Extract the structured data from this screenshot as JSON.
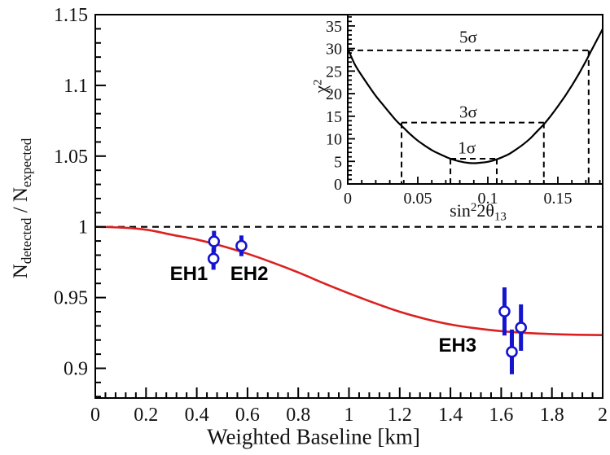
{
  "figure": {
    "background": "#ffffff",
    "colors": {
      "curve": "#dc2020",
      "points": "#1414cf",
      "axis": "#000000",
      "text": "#111111"
    }
  },
  "chart_data": [
    {
      "id": "main",
      "type": "line+scatter",
      "title": "",
      "xlabel": "Weighted Baseline [km]",
      "ylabel": "N_detected / N_expected",
      "ylabel_parts": {
        "base1": "N",
        "sub1": "detected",
        "base2": " / N",
        "sub2": "expected"
      },
      "xlim": [
        0,
        2
      ],
      "ylim": [
        0.879,
        1.15
      ],
      "x_major_ticks": [
        0,
        0.2,
        0.4,
        0.6,
        0.8,
        1,
        1.2,
        1.4,
        1.6,
        1.8,
        2
      ],
      "x_tick_labels": [
        "0",
        "0.2",
        "0.4",
        "0.6",
        "0.8",
        "1",
        "1.2",
        "1.4",
        "1.6",
        "1.8",
        "2"
      ],
      "x_minor_step": 0.04,
      "y_major_ticks": [
        0.9,
        0.95,
        1,
        1.05,
        1.1,
        1.15
      ],
      "y_tick_labels": [
        "0.9",
        "0.95",
        "1",
        "1.05",
        "1.1",
        "1.15"
      ],
      "y_minor_step": 0.01,
      "grid": false,
      "reference_line": {
        "y": 1.0,
        "style": "dashed",
        "color": "#000000"
      },
      "best_fit_curve": {
        "name": "best-fit oscillation survival ratio",
        "color": "#dc2020",
        "x": [
          0,
          0.1,
          0.2,
          0.3,
          0.4,
          0.5,
          0.6,
          0.7,
          0.8,
          0.9,
          1.0,
          1.1,
          1.2,
          1.3,
          1.4,
          1.5,
          1.6,
          1.7,
          1.8,
          1.9,
          2.0
        ],
        "y": [
          1.0,
          0.9995,
          0.998,
          0.9945,
          0.991,
          0.9865,
          0.981,
          0.9747,
          0.9678,
          0.9602,
          0.953,
          0.9462,
          0.94,
          0.935,
          0.931,
          0.9283,
          0.9263,
          0.925,
          0.9242,
          0.9237,
          0.9235
        ]
      },
      "data_points": {
        "marker": "open-circle",
        "color": "#1414cf",
        "points": [
          {
            "site": "EH1",
            "x": 0.468,
            "y": 0.9897,
            "yerr": 0.0075
          },
          {
            "site": "EH1",
            "x": 0.466,
            "y": 0.9775,
            "yerr": 0.0078
          },
          {
            "site": "EH2",
            "x": 0.576,
            "y": 0.9866,
            "yerr": 0.0073
          },
          {
            "site": "EH3",
            "x": 1.613,
            "y": 0.9402,
            "yerr": 0.017
          },
          {
            "site": "EH3",
            "x": 1.678,
            "y": 0.9288,
            "yerr": 0.0164
          },
          {
            "site": "EH3",
            "x": 1.642,
            "y": 0.9116,
            "yerr": 0.0158
          }
        ]
      },
      "annotations": [
        {
          "text": "EH1",
          "x": 0.369,
          "y": 0.9665
        },
        {
          "text": "EH2",
          "x": 0.607,
          "y": 0.9665
        },
        {
          "text": "EH3",
          "x": 1.428,
          "y": 0.916
        }
      ]
    },
    {
      "id": "inset",
      "type": "line",
      "title": "",
      "xlabel": "sin^2 2theta_13",
      "xlabel_parts": {
        "base": "sin",
        "sup": "2",
        "base2": "2θ",
        "sub": "13"
      },
      "ylabel": "chi^2",
      "ylabel_parts": {
        "base": "χ",
        "sup": "2"
      },
      "xlim": [
        0,
        0.182
      ],
      "ylim": [
        0,
        37.5
      ],
      "x_major_ticks": [
        0,
        0.05,
        0.1,
        0.15
      ],
      "x_tick_labels": [
        "0",
        "0.05",
        "0.1",
        "0.15"
      ],
      "x_minor_step": 0.01,
      "y_major_ticks": [
        0,
        5,
        10,
        15,
        20,
        25,
        30,
        35
      ],
      "y_tick_labels": [
        "0",
        "5",
        "10",
        "15",
        "20",
        "25",
        "30",
        "35"
      ],
      "y_minor_step": 1,
      "grid": false,
      "chi2_curve": {
        "name": "chi-square scan vs sin^2 2theta_13",
        "color": "#000000",
        "x": [
          0,
          0.005,
          0.01,
          0.015,
          0.02,
          0.025,
          0.03,
          0.035,
          0.04,
          0.045,
          0.05,
          0.055,
          0.06,
          0.065,
          0.07,
          0.075,
          0.08,
          0.085,
          0.09,
          0.095,
          0.1,
          0.105,
          0.11,
          0.115,
          0.12,
          0.125,
          0.13,
          0.135,
          0.14,
          0.145,
          0.15,
          0.155,
          0.16,
          0.165,
          0.17,
          0.175,
          0.182
        ],
        "chi2": [
          30,
          26.5,
          24,
          21.7,
          19.5,
          17.6,
          15.7,
          13.9,
          12.4,
          10.9,
          9.6,
          8.5,
          7.5,
          6.7,
          6,
          5.4,
          5,
          4.7,
          4.6,
          4.7,
          4.9,
          5.3,
          5.9,
          6.6,
          7.6,
          8.7,
          10,
          11.6,
          13.2,
          15.1,
          17.2,
          19.4,
          21.8,
          24.4,
          27.2,
          30.2,
          34.3
        ]
      },
      "best_fit": {
        "sin2_2theta13": 0.092,
        "chi2_min": 4.6
      },
      "confidence_lines": [
        {
          "label": "1σ",
          "chi2": 5.6,
          "x_lo": 0.0733,
          "x_hi": 0.1064,
          "label_x": 0.085,
          "label_chi2": 7.9
        },
        {
          "label": "3σ",
          "chi2": 13.6,
          "x_lo": 0.0384,
          "x_hi": 0.14,
          "label_x": 0.086,
          "label_chi2": 15.9
        },
        {
          "label": "5σ",
          "chi2": 29.6,
          "x_lo": 0.0,
          "x_hi": 0.172,
          "label_x": 0.086,
          "label_chi2": 32.4
        }
      ]
    }
  ]
}
